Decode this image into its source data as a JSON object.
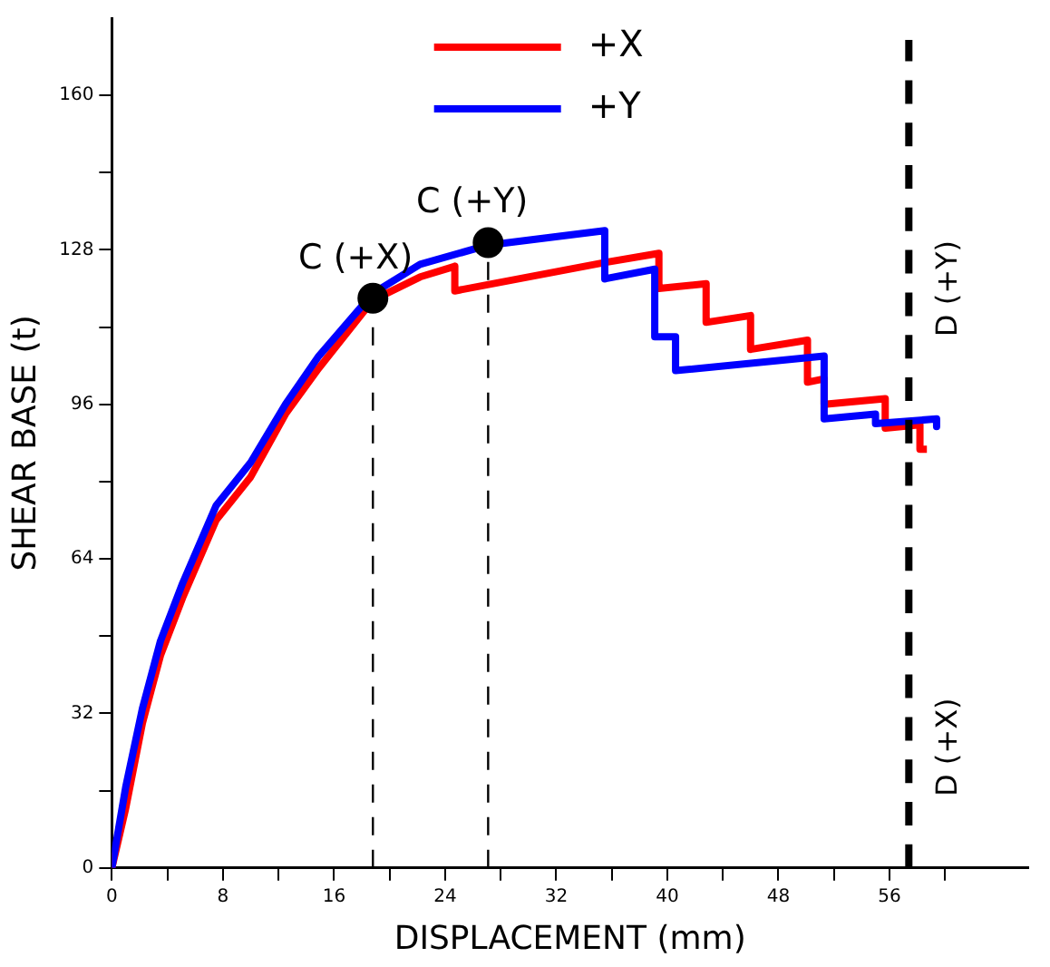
{
  "chart_data": {
    "type": "line",
    "xlabel": "DISPLACEMENT (mm)",
    "ylabel": "SHEAR BASE (t)",
    "xlim": [
      0,
      66
    ],
    "ylim": [
      0,
      176
    ],
    "xticks": [
      0,
      {
        "value": 4,
        "label": null
      },
      8,
      {
        "value": 12,
        "label": null
      },
      16,
      {
        "value": 20,
        "label": null
      },
      24,
      {
        "value": 28,
        "label": null
      },
      32,
      {
        "value": 36,
        "label": null
      },
      40,
      {
        "value": 44,
        "label": null
      },
      48,
      {
        "value": 52,
        "label": null
      },
      56,
      {
        "value": 60,
        "label": null
      }
    ],
    "yticks": [
      0,
      {
        "value": 16,
        "label": null
      },
      32,
      {
        "value": 48,
        "label": null
      },
      64,
      {
        "value": 80,
        "label": null
      },
      96,
      {
        "value": 112,
        "label": null
      },
      128,
      {
        "value": 144,
        "label": null
      },
      160
    ],
    "grid": false,
    "legend": "top",
    "line_style": "solid",
    "series": [
      {
        "name": "+X",
        "color": "#ff0000",
        "x": [
          0,
          1,
          2.2,
          3.5,
          5.1,
          7.5,
          10,
          12.5,
          14.9,
          18.8,
          22.2,
          24.7,
          24.7,
          35.5,
          39.4,
          39.4,
          42.8,
          42.8,
          46,
          46,
          50.1,
          50.1,
          51.3,
          51.3,
          55.7,
          55.7,
          58.2,
          58.2,
          58.7
        ],
        "values": [
          0,
          12.4,
          30,
          44,
          56,
          72,
          81,
          94,
          103.5,
          117.6,
          122.4,
          124.6,
          119.5,
          125.4,
          127.3,
          120,
          121,
          113,
          114.4,
          107.4,
          109.3,
          100.6,
          101.3,
          96,
          97.2,
          91.1,
          91.8,
          86.7,
          86.7
        ]
      },
      {
        "name": "+Y",
        "color": "#0000ff",
        "x": [
          0,
          1,
          2.2,
          3.5,
          5.1,
          7.5,
          10,
          12.5,
          14.9,
          18.8,
          22.2,
          27.1,
          35.5,
          35.5,
          39.1,
          39.1,
          40.6,
          40.6,
          51.3,
          51.3,
          55,
          55,
          59.4,
          59.4
        ],
        "values": [
          0,
          16.8,
          33,
          47,
          59,
          75,
          84,
          96,
          106,
          119,
          125,
          129,
          132,
          122,
          124,
          110,
          110,
          103,
          106,
          93,
          94,
          92,
          93,
          91.4
        ]
      },
      {
        "type": "line",
        "color": "#000000",
        "line_style": "dashed",
        "x": [
          18.8,
          18.8
        ],
        "values": [
          0,
          118
        ]
      },
      {
        "type": "line",
        "color": "#000000",
        "line_style": "dashed",
        "x": [
          27.1,
          27.1
        ],
        "values": [
          0,
          129.5
        ]
      },
      {
        "type": "scatter",
        "color": "#000000",
        "marker": "circle",
        "x": [
          18.8,
          27.1
        ],
        "values": [
          118,
          129.5
        ]
      }
    ],
    "ref_lines": [
      {
        "axis": "x",
        "value": 57.4,
        "color": "#000000",
        "line_style": "dashed"
      }
    ],
    "annotations": [
      {
        "text": "C (+X)",
        "x": 18.8,
        "y": 118
      },
      {
        "text": "C (+Y)",
        "x": 27.1,
        "y": 129.5
      },
      {
        "text": "D (+Y)",
        "x": 57.4,
        "y": 120
      },
      {
        "text": "D (+X)",
        "x": 57.4,
        "y": 25
      }
    ]
  }
}
